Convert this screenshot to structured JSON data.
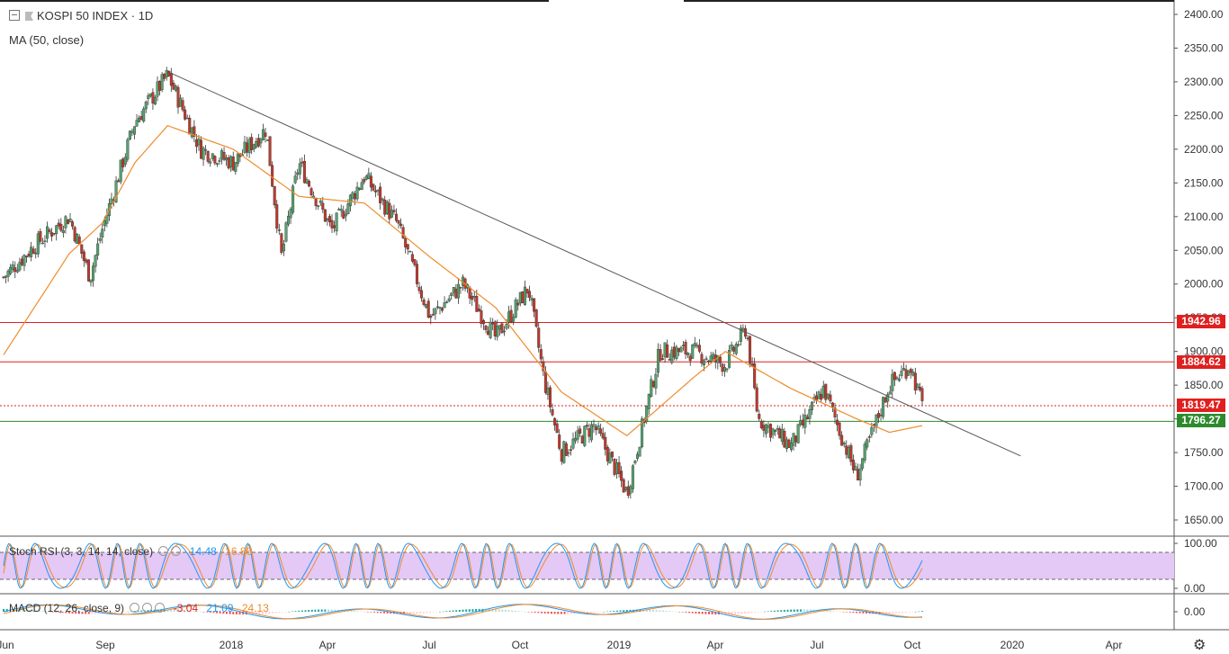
{
  "window": {
    "symbol_title": "KOSPI 50 INDEX · 1D",
    "ma_label": "MA (50, close)"
  },
  "colors": {
    "up": "#53a36e",
    "down": "#c0392b",
    "ma": "#ef8b2c",
    "resistance": "#e02020",
    "support": "#2d8a2d",
    "trendline": "#555555",
    "stoch_k": "#2196f3",
    "stoch_d": "#ef8b2c",
    "stoch_band": "#e4c8f5"
  },
  "price_axis": {
    "ticks": [
      "2400.00",
      "2350.00",
      "2300.00",
      "2250.00",
      "2200.00",
      "2150.00",
      "2100.00",
      "2050.00",
      "2000.00",
      "1950.00",
      "1900.00",
      "1850.00",
      "1800.00",
      "1750.00",
      "1700.00",
      "1650.00"
    ],
    "ylim": [
      1620,
      2420
    ]
  },
  "price_labels": [
    {
      "value": "1942.96",
      "level": 1942.96,
      "color": "#e02020",
      "style": "solid"
    },
    {
      "value": "1884.62",
      "level": 1884.62,
      "color": "#e02020",
      "style": "solid"
    },
    {
      "value": "1819.47",
      "level": 1819.47,
      "color": "#e02020",
      "style": "dotted"
    },
    {
      "value": "1796.27",
      "level": 1796.27,
      "color": "#2d8a2d",
      "style": "solid"
    }
  ],
  "time_axis": [
    "Jun",
    "Sep",
    "2018",
    "Apr",
    "Jul",
    "Oct",
    "2019",
    "Apr",
    "Jul",
    "Oct",
    "2020",
    "Apr"
  ],
  "stoch": {
    "label": "Stoch RSI (3, 3, 14, 14, close)",
    "k_value": "14.48",
    "d_value": "16.86",
    "ticks": [
      "100.00",
      "0.00"
    ]
  },
  "macd": {
    "label": "MACD (12, 26, close, 9)",
    "hist_value": "-3.04",
    "macd_value": "21.09",
    "signal_value": "24.13",
    "ticks": [
      "0.00"
    ]
  },
  "chart_data": {
    "type": "candlestick",
    "title": "KOSPI 50 INDEX · 1D",
    "ylim": [
      1620,
      2420
    ],
    "anchors": [
      {
        "t": "2017-06",
        "close": 2010
      },
      {
        "t": "2017-07",
        "close": 2060
      },
      {
        "t": "2017-08",
        "close": 2100
      },
      {
        "t": "2017-08-20",
        "close": 2010
      },
      {
        "t": "2017-09",
        "close": 2080
      },
      {
        "t": "2017-10",
        "close": 2240
      },
      {
        "t": "2017-11-01",
        "close": 2310
      },
      {
        "t": "2017-12",
        "close": 2200
      },
      {
        "t": "2018-01",
        "close": 2180
      },
      {
        "t": "2018-02",
        "close": 2230
      },
      {
        "t": "2018-02-15",
        "close": 2040
      },
      {
        "t": "2018-03",
        "close": 2180
      },
      {
        "t": "2018-04",
        "close": 2080
      },
      {
        "t": "2018-05",
        "close": 2160
      },
      {
        "t": "2018-06",
        "close": 2090
      },
      {
        "t": "2018-07",
        "close": 1950
      },
      {
        "t": "2018-08",
        "close": 2000
      },
      {
        "t": "2018-09",
        "close": 1920
      },
      {
        "t": "2018-10-01",
        "close": 1995
      },
      {
        "t": "2018-10-15",
        "close": 1860
      },
      {
        "t": "2018-11",
        "close": 1750
      },
      {
        "t": "2018-12",
        "close": 1790
      },
      {
        "t": "2019-01",
        "close": 1690
      },
      {
        "t": "2019-02",
        "close": 1900
      },
      {
        "t": "2019-03",
        "close": 1900
      },
      {
        "t": "2019-04",
        "close": 1880
      },
      {
        "t": "2019-04-20",
        "close": 1935
      },
      {
        "t": "2019-05",
        "close": 1800
      },
      {
        "t": "2019-06",
        "close": 1760
      },
      {
        "t": "2019-07",
        "close": 1845
      },
      {
        "t": "2019-08",
        "close": 1715
      },
      {
        "t": "2019-09",
        "close": 1850
      },
      {
        "t": "2019-09-20",
        "close": 1880
      },
      {
        "t": "2019-10",
        "close": 1819.47
      }
    ],
    "ma50_anchors": [
      {
        "t": "2017-06",
        "value": 1895
      },
      {
        "t": "2017-08",
        "value": 2045
      },
      {
        "t": "2017-09",
        "value": 2090
      },
      {
        "t": "2017-10",
        "value": 2180
      },
      {
        "t": "2017-11",
        "value": 2235
      },
      {
        "t": "2018-01",
        "value": 2200
      },
      {
        "t": "2018-03",
        "value": 2130
      },
      {
        "t": "2018-05",
        "value": 2120
      },
      {
        "t": "2018-07",
        "value": 2040
      },
      {
        "t": "2018-09",
        "value": 1965
      },
      {
        "t": "2018-11",
        "value": 1840
      },
      {
        "t": "2019-01",
        "value": 1775
      },
      {
        "t": "2019-03",
        "value": 1860
      },
      {
        "t": "2019-04",
        "value": 1900
      },
      {
        "t": "2019-06",
        "value": 1845
      },
      {
        "t": "2019-08",
        "value": 1800
      },
      {
        "t": "2019-09",
        "value": 1780
      },
      {
        "t": "2019-10",
        "value": 1790
      }
    ],
    "trendline": [
      {
        "t": "2017-11-01",
        "value": 2315
      },
      {
        "t": "2020-01-01",
        "value": 1745
      }
    ],
    "horizontal_levels": [
      1942.96,
      1884.62,
      1819.47,
      1796.27
    ],
    "last_close": 1819.47
  }
}
